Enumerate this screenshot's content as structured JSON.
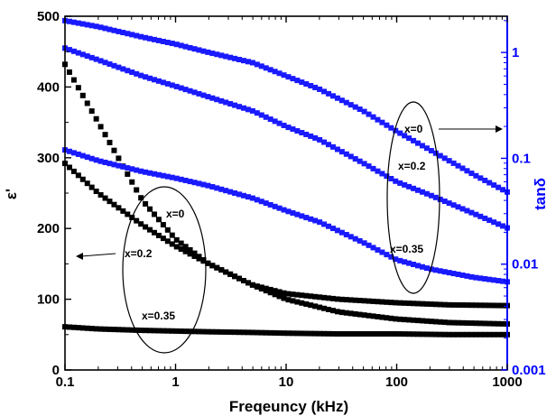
{
  "chart_data": {
    "type": "scatter",
    "title": "",
    "xlabel": "Freqeuncy (kHz)",
    "ylabel_left": "ε'",
    "ylabel_right": "tanδ",
    "x_scale": "log",
    "xlim": [
      0.1,
      1000
    ],
    "x_ticks": [
      "0.1",
      "1",
      "10",
      "100",
      "1000"
    ],
    "y_left_lim": [
      0,
      500
    ],
    "y_left_ticks": [
      "0",
      "100",
      "200",
      "300",
      "400",
      "500"
    ],
    "y_right_scale": "log",
    "y_right_lim": [
      0.001,
      2.2
    ],
    "y_right_ticks": [
      "0.001",
      "0.01",
      "0.1",
      "1"
    ],
    "grid": false,
    "colors": {
      "left_axis": "#000000",
      "right_axis": "#0000ff",
      "left_series": "#000000",
      "right_series": "#1a1aff"
    },
    "series": [
      {
        "name": "x=0",
        "axis": "left",
        "x": [
          0.1,
          0.2,
          0.5,
          1,
          2,
          5,
          10,
          30,
          100,
          300,
          1000
        ],
        "y": [
          432,
          350,
          240,
          185,
          150,
          120,
          108,
          100,
          95,
          92,
          91
        ]
      },
      {
        "name": "x=0.2",
        "axis": "left",
        "x": [
          0.1,
          0.2,
          0.5,
          1,
          2,
          5,
          10,
          30,
          100,
          300,
          1000
        ],
        "y": [
          292,
          250,
          205,
          175,
          150,
          120,
          100,
          82,
          72,
          67,
          65
        ]
      },
      {
        "name": "x=0.35",
        "axis": "left",
        "x": [
          0.1,
          0.2,
          0.5,
          1,
          2,
          5,
          10,
          30,
          100,
          300,
          1000
        ],
        "y": [
          61,
          58,
          56,
          55,
          54,
          53,
          52,
          51,
          51,
          50,
          50
        ]
      },
      {
        "name": "x=0",
        "axis": "right",
        "x": [
          0.1,
          0.2,
          0.5,
          1,
          2,
          5,
          10,
          20,
          50,
          100,
          200,
          500,
          1000
        ],
        "y": [
          2.0,
          1.75,
          1.4,
          1.2,
          1.0,
          0.8,
          0.6,
          0.45,
          0.28,
          0.18,
          0.12,
          0.07,
          0.048
        ]
      },
      {
        "name": "x=0.2",
        "axis": "right",
        "x": [
          0.1,
          0.2,
          0.5,
          1,
          2,
          5,
          10,
          20,
          50,
          100,
          200,
          500,
          1000
        ],
        "y": [
          1.1,
          0.85,
          0.6,
          0.48,
          0.38,
          0.28,
          0.2,
          0.15,
          0.09,
          0.06,
          0.045,
          0.03,
          0.022
        ]
      },
      {
        "name": "x=0.35",
        "axis": "right",
        "x": [
          0.1,
          0.2,
          0.5,
          1,
          2,
          5,
          10,
          20,
          50,
          100,
          200,
          500,
          1000
        ],
        "y": [
          0.12,
          0.095,
          0.075,
          0.065,
          0.055,
          0.042,
          0.032,
          0.025,
          0.016,
          0.011,
          0.009,
          0.0075,
          0.0068
        ]
      }
    ],
    "annotations": {
      "left_group": [
        "x=0",
        "x=0.2",
        "x=0.35"
      ],
      "right_group": [
        "x=0",
        "x=0.2",
        "x=0.35"
      ]
    }
  }
}
